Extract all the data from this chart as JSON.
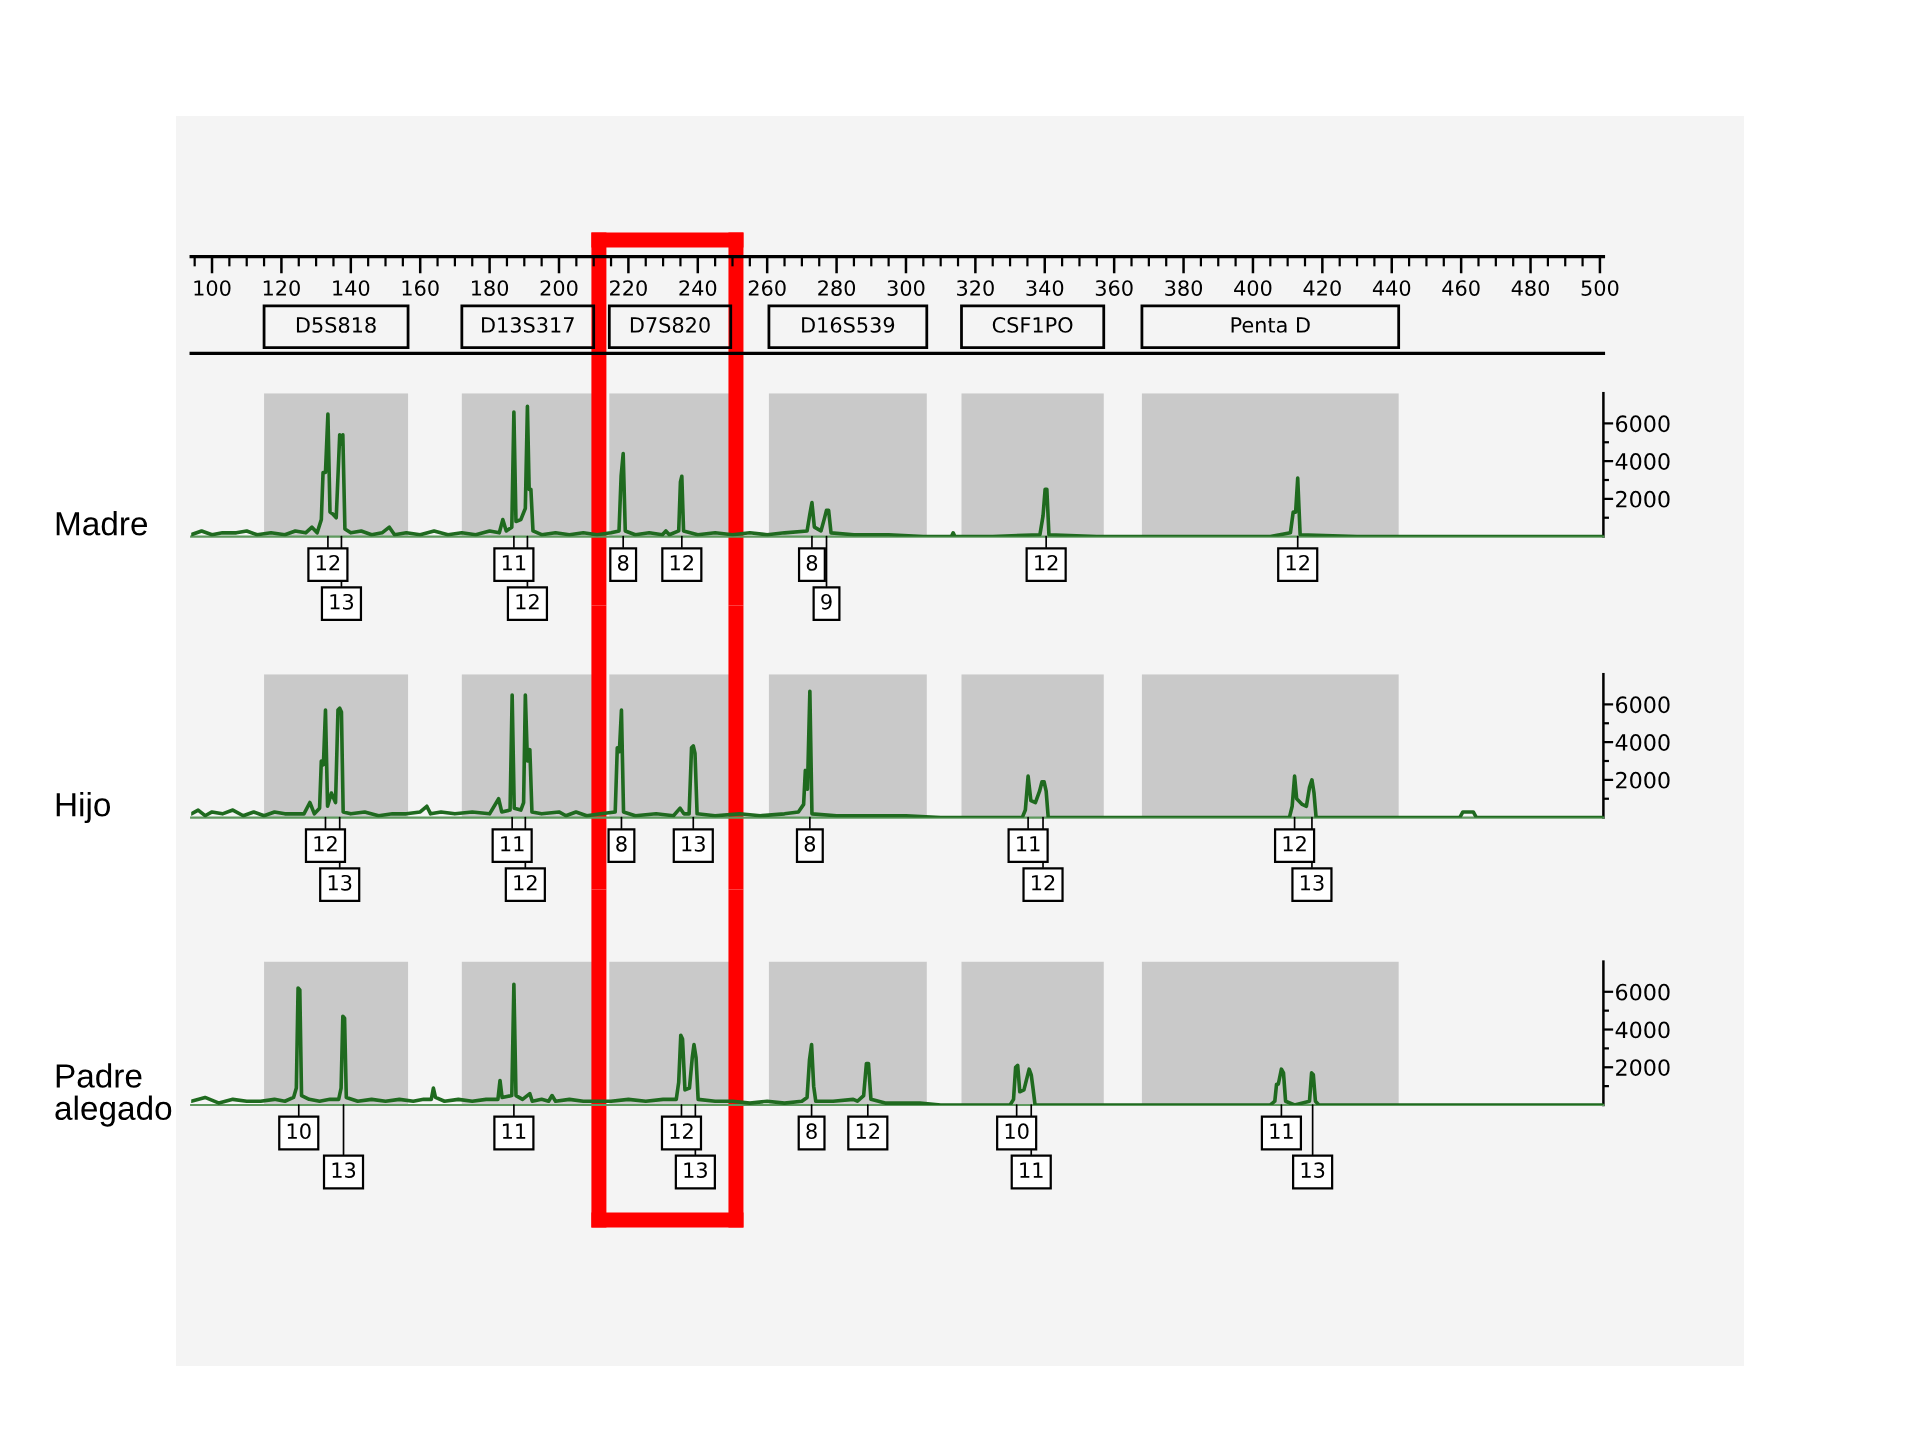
{
  "chart_data": [
    {
      "type": "line",
      "ylabel": "Madre",
      "xlim": [
        94,
        501
      ],
      "xticks": [
        100,
        120,
        140,
        160,
        180,
        200,
        220,
        240,
        260,
        280,
        300,
        320,
        340,
        360,
        380,
        400,
        420,
        440,
        460,
        480,
        500
      ],
      "ylim": [
        0,
        7600
      ],
      "yticks": [
        {
          "value": 1000,
          "label": null
        },
        2000,
        {
          "value": 3000,
          "label": null
        },
        4000,
        {
          "value": 5000,
          "label": null
        },
        6000
      ],
      "bands": [
        {
          "axis": "x",
          "from": 115,
          "to": 156.5,
          "label": "D5S818",
          "color": "#c9c9c9"
        },
        {
          "axis": "x",
          "from": 172,
          "to": 210,
          "label": "D13S317",
          "color": "#c9c9c9"
        },
        {
          "axis": "x",
          "from": 214.5,
          "to": 249.5,
          "label": "D7S820",
          "color": "#c9c9c9"
        },
        {
          "axis": "x",
          "from": 260.5,
          "to": 306,
          "label": "D16S539",
          "color": "#c9c9c9"
        },
        {
          "axis": "x",
          "from": 316,
          "to": 357,
          "label": "CSF1PO",
          "color": "#c9c9c9"
        },
        {
          "axis": "x",
          "from": 368,
          "to": 442,
          "label": "Penta D",
          "color": "#c9c9c9"
        }
      ],
      "ref_lines": [
        {
          "axis": "x",
          "value": 211.5,
          "color": "#ff0000"
        },
        {
          "axis": "x",
          "value": 251,
          "color": "#ff0000"
        }
      ],
      "series": [
        {
          "color": "#1f6a1f",
          "x": [
            94,
            97,
            100,
            103,
            107,
            110,
            113,
            117,
            121,
            124,
            127,
            128.8,
            130.3,
            131.5,
            132.0,
            132.7,
            133.4,
            134.0,
            134.8,
            135.8,
            136.8,
            137.2,
            137.7,
            138.3,
            140,
            143,
            146,
            149,
            151.1,
            152.6,
            156,
            160,
            164,
            168,
            172,
            176,
            180,
            182.8,
            183.8,
            184.8,
            186.4,
            187.0,
            187.6,
            189.0,
            190.3,
            190.9,
            191.4,
            191.9,
            192.5,
            195,
            199,
            203,
            207,
            211,
            215,
            217.3,
            217.9,
            218.5,
            219.1,
            222,
            226,
            229.8,
            230.8,
            231.8,
            234.5,
            235.0,
            235.4,
            235.9,
            240,
            245,
            250,
            255,
            260,
            265,
            271.5,
            272.3,
            272.9,
            273.6,
            275.5,
            276.4,
            277.1,
            277.7,
            278.4,
            285,
            295,
            305,
            313.1,
            313.6,
            314.1,
            325,
            338.6,
            339.5,
            340.1,
            340.6,
            341.2,
            355,
            380,
            405,
            410.8,
            411.6,
            412.3,
            412.9,
            413.6,
            430,
            460,
            501
          ],
          "values": [
            100,
            300,
            100,
            200,
            200,
            300,
            100,
            200,
            100,
            300,
            200,
            500,
            200,
            900,
            3400,
            3400,
            6500,
            1300,
            1200,
            1000,
            5400,
            4900,
            5400,
            400,
            200,
            300,
            100,
            200,
            500,
            100,
            200,
            100,
            300,
            100,
            200,
            100,
            300,
            200,
            900,
            300,
            500,
            6600,
            800,
            900,
            1500,
            6900,
            2500,
            2500,
            300,
            100,
            200,
            100,
            200,
            100,
            200,
            300,
            3200,
            4400,
            300,
            100,
            200,
            100,
            300,
            100,
            300,
            2900,
            3200,
            300,
            100,
            200,
            100,
            200,
            100,
            200,
            300,
            1200,
            1800,
            500,
            300,
            900,
            1400,
            1400,
            200,
            100,
            100,
            0,
            0,
            200,
            0,
            0,
            100,
            1100,
            2500,
            2500,
            100,
            0,
            0,
            0,
            200,
            1300,
            1300,
            3100,
            100,
            0,
            0,
            0
          ]
        }
      ],
      "annotations": [
        {
          "text": "12",
          "x": 133.4,
          "y": 0
        },
        {
          "text": "13",
          "x": 137.3,
          "y": 0
        },
        {
          "text": "11",
          "x": 187.0,
          "y": 0
        },
        {
          "text": "12",
          "x": 190.9,
          "y": 0
        },
        {
          "text": "8",
          "x": 218.5,
          "y": 0
        },
        {
          "text": "12",
          "x": 235.4,
          "y": 0
        },
        {
          "text": "8",
          "x": 272.9,
          "y": 0
        },
        {
          "text": "9",
          "x": 277.1,
          "y": 0
        },
        {
          "text": "12",
          "x": 340.4,
          "y": 0
        },
        {
          "text": "12",
          "x": 412.9,
          "y": 0
        }
      ]
    },
    {
      "type": "line",
      "ylabel": "Hijo",
      "xlim": [
        94,
        501
      ],
      "tick_labels": "y",
      "ylim": [
        0,
        7600
      ],
      "yticks": [
        {
          "value": 1000,
          "label": null
        },
        2000,
        {
          "value": 3000,
          "label": null
        },
        4000,
        {
          "value": 5000,
          "label": null
        },
        6000
      ],
      "bands": [
        {
          "axis": "x",
          "from": 115,
          "to": 156.5,
          "color": "#c9c9c9"
        },
        {
          "axis": "x",
          "from": 172,
          "to": 210,
          "color": "#c9c9c9"
        },
        {
          "axis": "x",
          "from": 214.5,
          "to": 249.5,
          "color": "#c9c9c9"
        },
        {
          "axis": "x",
          "from": 260.5,
          "to": 306,
          "color": "#c9c9c9"
        },
        {
          "axis": "x",
          "from": 316,
          "to": 357,
          "color": "#c9c9c9"
        },
        {
          "axis": "x",
          "from": 368,
          "to": 442,
          "color": "#c9c9c9"
        }
      ],
      "ref_lines": [
        {
          "axis": "x",
          "value": 211.5,
          "color": "#ff0000"
        },
        {
          "axis": "x",
          "value": 251,
          "color": "#ff0000"
        }
      ],
      "series": [
        {
          "color": "#1f6a1f",
          "x": [
            94,
            96,
            98,
            100,
            103,
            106,
            109,
            112,
            115,
            118,
            121,
            124,
            126.5,
            128.2,
            129.5,
            131.0,
            131.5,
            132.1,
            132.7,
            133.3,
            134.4,
            135.6,
            136.3,
            136.8,
            137.3,
            137.8,
            140,
            144,
            148,
            152,
            156,
            160,
            161.9,
            163,
            166,
            170,
            175,
            180,
            182.6,
            183.5,
            185.9,
            186.5,
            187.1,
            189.0,
            189.8,
            190.3,
            190.9,
            191.6,
            192.2,
            195,
            200,
            202,
            204.9,
            208,
            212,
            216.2,
            216.8,
            217.4,
            218.0,
            218.6,
            222,
            228,
            233,
            234.9,
            236,
            237.5,
            238.2,
            238.7,
            239.2,
            239.8,
            245,
            252,
            258,
            265,
            269,
            270.5,
            271.0,
            271.6,
            272.3,
            272.9,
            280,
            290,
            300,
            310,
            333.5,
            334.4,
            335.2,
            336.0,
            337.3,
            338.5,
            339.2,
            339.8,
            340.4,
            341.0,
            360,
            390,
            410.5,
            411.3,
            412.0,
            412.6,
            414.2,
            415.4,
            416.3,
            417.0,
            417.6,
            418.2,
            440,
            459.6,
            460.5,
            463.5,
            464.4,
            485,
            501
          ],
          "values": [
            200,
            400,
            100,
            300,
            200,
            400,
            100,
            300,
            100,
            300,
            200,
            200,
            200,
            800,
            200,
            500,
            3000,
            2800,
            5700,
            600,
            1300,
            800,
            5700,
            5800,
            5600,
            300,
            200,
            300,
            100,
            200,
            200,
            300,
            600,
            200,
            300,
            200,
            300,
            200,
            1000,
            300,
            400,
            6500,
            500,
            400,
            800,
            6500,
            3000,
            3600,
            300,
            200,
            300,
            100,
            300,
            100,
            200,
            300,
            3700,
            3500,
            5700,
            300,
            100,
            200,
            100,
            500,
            200,
            200,
            3700,
            3800,
            3400,
            200,
            100,
            200,
            100,
            200,
            300,
            700,
            2500,
            1500,
            6700,
            200,
            100,
            100,
            100,
            0,
            0,
            400,
            2200,
            900,
            800,
            1400,
            1900,
            1900,
            1400,
            0,
            0,
            0,
            0,
            600,
            2200,
            1000,
            700,
            600,
            1600,
            2000,
            1300,
            0,
            0,
            0,
            300,
            300,
            0,
            0,
            0
          ]
        }
      ],
      "annotations": [
        {
          "text": "12",
          "x": 132.7,
          "y": 0
        },
        {
          "text": "13",
          "x": 136.8,
          "y": 0
        },
        {
          "text": "11",
          "x": 186.5,
          "y": 0
        },
        {
          "text": "12",
          "x": 190.3,
          "y": 0
        },
        {
          "text": "8",
          "x": 218.0,
          "y": 0
        },
        {
          "text": "13",
          "x": 238.7,
          "y": 0
        },
        {
          "text": "8",
          "x": 272.3,
          "y": 0
        },
        {
          "text": "11",
          "x": 335.2,
          "y": 0
        },
        {
          "text": "12",
          "x": 339.5,
          "y": 0
        },
        {
          "text": "12",
          "x": 412.0,
          "y": 0
        },
        {
          "text": "13",
          "x": 417.0,
          "y": 0
        }
      ]
    },
    {
      "type": "line",
      "ylabel": "Padre alegado",
      "xlim": [
        94,
        501
      ],
      "tick_labels": "y",
      "ylim": [
        0,
        7600
      ],
      "yticks": [
        {
          "value": 1000,
          "label": null
        },
        2000,
        {
          "value": 3000,
          "label": null
        },
        4000,
        {
          "value": 5000,
          "label": null
        },
        6000
      ],
      "bands": [
        {
          "axis": "x",
          "from": 115,
          "to": 156.5,
          "color": "#c9c9c9"
        },
        {
          "axis": "x",
          "from": 172,
          "to": 210,
          "color": "#c9c9c9"
        },
        {
          "axis": "x",
          "from": 214.5,
          "to": 249.5,
          "color": "#c9c9c9"
        },
        {
          "axis": "x",
          "from": 260.5,
          "to": 306,
          "color": "#c9c9c9"
        },
        {
          "axis": "x",
          "from": 316,
          "to": 357,
          "color": "#c9c9c9"
        },
        {
          "axis": "x",
          "from": 368,
          "to": 442,
          "color": "#c9c9c9"
        }
      ],
      "ref_lines": [
        {
          "axis": "x",
          "value": 211.5,
          "color": "#ff0000"
        },
        {
          "axis": "x",
          "value": 251,
          "color": "#ff0000"
        }
      ],
      "series": [
        {
          "color": "#1f6a1f",
          "x": [
            94,
            98,
            102,
            106,
            110,
            114,
            118,
            121,
            123.5,
            124.3,
            124.8,
            125.3,
            125.8,
            128,
            131,
            134,
            136.5,
            137.2,
            137.7,
            138.2,
            138.7,
            142,
            146,
            150,
            154,
            158,
            161,
            163.2,
            163.8,
            164.4,
            167,
            171,
            175,
            179,
            182.4,
            183.0,
            183.6,
            186.4,
            187.0,
            187.6,
            189.5,
            191.6,
            192.3,
            195,
            197,
            198,
            199,
            203,
            207,
            211,
            215,
            220,
            225,
            230,
            233.8,
            234.5,
            235.1,
            235.6,
            236.3,
            237.6,
            238.4,
            238.9,
            239.5,
            240.1,
            245,
            250,
            255,
            260,
            265,
            270,
            271.5,
            272.2,
            272.8,
            273.4,
            274.0,
            279,
            284.8,
            286,
            287.8,
            288.6,
            289.2,
            289.9,
            294,
            300,
            304,
            310,
            330,
            331.0,
            331.6,
            332.2,
            332.8,
            334.0,
            335.5,
            336.1,
            336.6,
            337.2,
            350,
            380,
            405,
            406.3,
            406.8,
            407.3,
            408.2,
            408.8,
            409.4,
            412,
            416.3,
            416.9,
            417.4,
            418.0,
            419,
            440,
            470,
            501
          ],
          "values": [
            200,
            400,
            100,
            300,
            200,
            200,
            300,
            200,
            400,
            900,
            6200,
            6100,
            500,
            300,
            200,
            300,
            300,
            900,
            4700,
            4600,
            400,
            200,
            300,
            200,
            300,
            200,
            300,
            300,
            900,
            400,
            200,
            300,
            200,
            300,
            300,
            1300,
            400,
            500,
            6400,
            500,
            300,
            600,
            200,
            300,
            200,
            500,
            200,
            300,
            200,
            200,
            200,
            300,
            200,
            300,
            300,
            1200,
            3700,
            3500,
            800,
            900,
            2500,
            3200,
            2500,
            300,
            200,
            200,
            100,
            200,
            100,
            200,
            400,
            2400,
            3200,
            1000,
            200,
            200,
            300,
            200,
            500,
            2200,
            2200,
            300,
            100,
            100,
            100,
            0,
            0,
            300,
            2000,
            2100,
            700,
            800,
            1900,
            1600,
            900,
            0,
            0,
            0,
            0,
            200,
            1100,
            1100,
            1900,
            1700,
            200,
            0,
            200,
            1700,
            1600,
            200,
            0,
            0,
            0,
            0
          ]
        }
      ],
      "annotations": [
        {
          "text": "10",
          "x": 125.0,
          "y": 0
        },
        {
          "text": "13",
          "x": 137.9,
          "y": 0
        },
        {
          "text": "11",
          "x": 187.0,
          "y": 0
        },
        {
          "text": "12",
          "x": 235.3,
          "y": 0
        },
        {
          "text": "13",
          "x": 239.3,
          "y": 0
        },
        {
          "text": "8",
          "x": 272.8,
          "y": 0
        },
        {
          "text": "12",
          "x": 289.0,
          "y": 0
        },
        {
          "text": "10",
          "x": 331.9,
          "y": 0
        },
        {
          "text": "11",
          "x": 336.1,
          "y": 0
        },
        {
          "text": "11",
          "x": 408.2,
          "y": 0
        },
        {
          "text": "13",
          "x": 417.2,
          "y": 0
        }
      ]
    }
  ]
}
